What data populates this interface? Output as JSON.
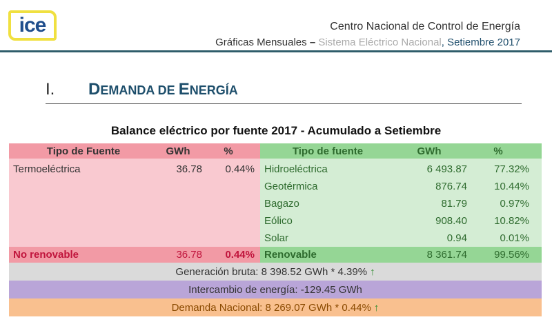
{
  "header": {
    "logo": "ice",
    "line1": "Centro Nacional de Control de Energía",
    "line2_a": "Gráficas Mensuales",
    "line2_sep": " – ",
    "line2_b": "Sistema Eléctrico Nacional",
    "line2_c": ", Setiembre 2017"
  },
  "section": {
    "number": "I.",
    "title": "Demanda de energía",
    "title_caps_D": "D",
    "title_rest": "EMANDA DE ",
    "title_caps_E": "E",
    "title_rest2": "NERGÍA"
  },
  "table": {
    "title": "Balance eléctrico por fuente 2017 - Acumulado a Setiembre",
    "left": {
      "headers": [
        "Tipo de Fuente",
        "GWh",
        "%"
      ],
      "rows": [
        [
          "Termoeléctrica",
          "36.78",
          "0.44%"
        ]
      ],
      "subtotal": [
        "No renovable",
        "36.78",
        "0.44%"
      ]
    },
    "right": {
      "headers": [
        "Tipo de fuente",
        "GWh",
        "%"
      ],
      "rows": [
        [
          "Hidroeléctrica",
          "6 493.87",
          "77.32%"
        ],
        [
          "Geotérmica",
          "876.74",
          "10.44%"
        ],
        [
          "Bagazo",
          "81.79",
          "0.97%"
        ],
        [
          "Eólico",
          "908.40",
          "10.82%"
        ],
        [
          "Solar",
          "0.94",
          "0.01%"
        ]
      ],
      "subtotal": [
        "Renovable",
        "8 361.74",
        "99.56%"
      ]
    },
    "generation": "Generación bruta: 8 398.52 GWh *  4.39%",
    "exchange": "Intercambio de energía: -129.45 GWh",
    "demand": "Demanda Nacional:  8 269.07 GWh *  0.44%",
    "arrow": "↑"
  }
}
